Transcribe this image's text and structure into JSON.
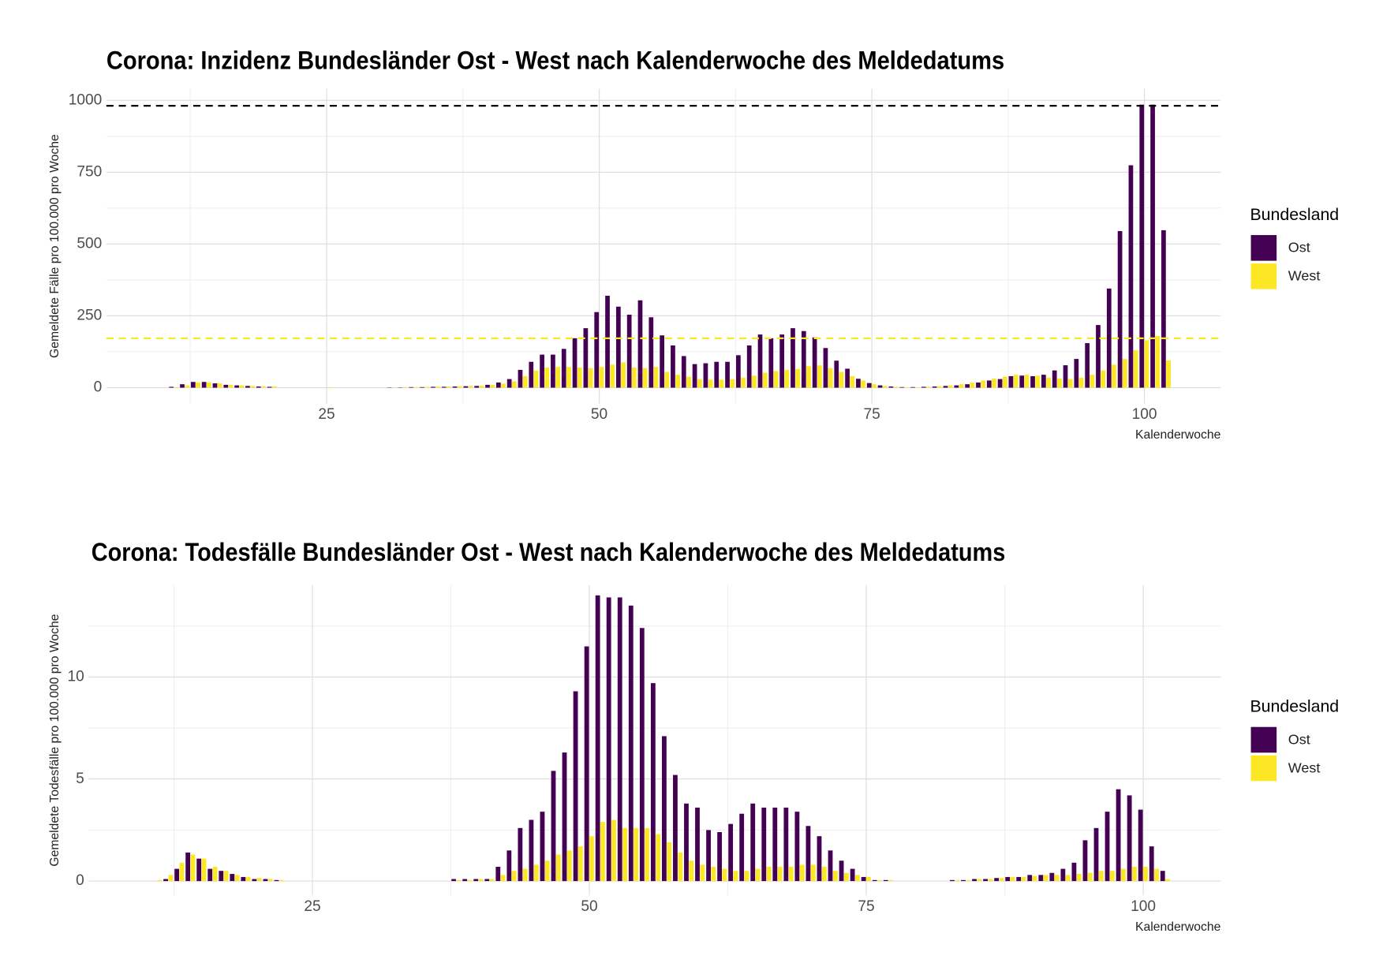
{
  "chart_data": [
    {
      "type": "bar",
      "title": "Corona: Inzidenz Bundesländer Ost - West nach Kalenderwoche des Meldedatums",
      "xlabel": "Kalenderwoche",
      "ylabel": "Gemeldete Fälle pro 100.000 pro Woche",
      "legend_title": "Bundesland",
      "legend_position": "right",
      "grid": true,
      "xlim": [
        4.8,
        107
      ],
      "xticks": [
        25,
        50,
        75,
        100
      ],
      "xminor": [
        12.5,
        37.5,
        62.5,
        87.5
      ],
      "ylim": [
        -55,
        1040
      ],
      "yticks": [
        0,
        250,
        500,
        750,
        1000
      ],
      "yminor": [
        125,
        375,
        625,
        875
      ],
      "hlines": [
        {
          "value": 981,
          "color": "#000000"
        },
        {
          "value": 172,
          "color": "#fde725"
        }
      ],
      "x": [
        11,
        12,
        13,
        14,
        15,
        16,
        17,
        18,
        19,
        20,
        21,
        22,
        23,
        24,
        25,
        26,
        27,
        28,
        29,
        30,
        31,
        32,
        33,
        34,
        35,
        36,
        37,
        38,
        39,
        40,
        41,
        42,
        43,
        44,
        45,
        46,
        47,
        48,
        49,
        50,
        51,
        52,
        53,
        54,
        55,
        56,
        57,
        58,
        59,
        60,
        61,
        62,
        63,
        64,
        65,
        66,
        67,
        68,
        69,
        70,
        71,
        72,
        73,
        74,
        75,
        76,
        77,
        78,
        79,
        80,
        81,
        82,
        83,
        84,
        85,
        86,
        87,
        88,
        89,
        90,
        91,
        92,
        93,
        94,
        95,
        96,
        97,
        98,
        99,
        100,
        101,
        102
      ],
      "series": [
        {
          "name": "Ost",
          "color": "#440154",
          "values": [
            3,
            12,
            20,
            20,
            15,
            10,
            8,
            6,
            4,
            3,
            0,
            0,
            0,
            0,
            0,
            0,
            0,
            0,
            0,
            0,
            1,
            1,
            2,
            2,
            3,
            3,
            4,
            5,
            6,
            10,
            18,
            30,
            62,
            90,
            115,
            115,
            135,
            172,
            207,
            263,
            320,
            282,
            254,
            304,
            245,
            182,
            147,
            110,
            82,
            85,
            90,
            90,
            113,
            147,
            185,
            172,
            185,
            207,
            197,
            175,
            138,
            94,
            66,
            31,
            16,
            8,
            4,
            2,
            2,
            3,
            4,
            6,
            8,
            12,
            18,
            25,
            30,
            40,
            42,
            40,
            45,
            60,
            78,
            100,
            155,
            218,
            345,
            545,
            774,
            985,
            985,
            548
          ]
        },
        {
          "name": "West",
          "color": "#fde725",
          "values": [
            2,
            8,
            18,
            18,
            15,
            10,
            8,
            6,
            5,
            4,
            0,
            0,
            0,
            0,
            2,
            0,
            0,
            0,
            0,
            0,
            1,
            2,
            2,
            3,
            4,
            4,
            5,
            6,
            7,
            10,
            14,
            22,
            40,
            60,
            70,
            72,
            72,
            70,
            68,
            72,
            80,
            88,
            70,
            68,
            72,
            55,
            45,
            38,
            30,
            28,
            28,
            30,
            35,
            42,
            52,
            58,
            62,
            65,
            75,
            78,
            68,
            55,
            40,
            25,
            12,
            6,
            3,
            2,
            2,
            3,
            5,
            8,
            12,
            18,
            25,
            32,
            38,
            45,
            45,
            42,
            35,
            32,
            30,
            35,
            45,
            60,
            80,
            100,
            130,
            165,
            180,
            95
          ]
        }
      ]
    },
    {
      "type": "bar",
      "title": "Corona: Todesfälle Bundesländer Ost - West nach Kalenderwoche des Meldedatums",
      "xlabel": "Kalenderwoche",
      "ylabel": "Gemeldete Todesfälle pro 100.000 pro Woche",
      "legend_title": "Bundesland",
      "legend_position": "right",
      "grid": true,
      "xlim": [
        4.8,
        107
      ],
      "xticks": [
        25,
        50,
        75,
        100
      ],
      "xminor": [
        12.5,
        37.5,
        62.5,
        87.5
      ],
      "ylim": [
        -0.7,
        14.5
      ],
      "yticks": [
        0,
        5,
        10
      ],
      "yminor": [
        2.5,
        7.5,
        12.5
      ],
      "hlines": [],
      "x": [
        11,
        12,
        13,
        14,
        15,
        16,
        17,
        18,
        19,
        20,
        21,
        22,
        23,
        24,
        25,
        26,
        27,
        28,
        29,
        30,
        31,
        32,
        33,
        34,
        35,
        36,
        37,
        38,
        39,
        40,
        41,
        42,
        43,
        44,
        45,
        46,
        47,
        48,
        49,
        50,
        51,
        52,
        53,
        54,
        55,
        56,
        57,
        58,
        59,
        60,
        61,
        62,
        63,
        64,
        65,
        66,
        67,
        68,
        69,
        70,
        71,
        72,
        73,
        74,
        75,
        76,
        77,
        78,
        79,
        80,
        81,
        82,
        83,
        84,
        85,
        86,
        87,
        88,
        89,
        90,
        91,
        92,
        93,
        94,
        95,
        96,
        97,
        98,
        99,
        100,
        101,
        102
      ],
      "series": [
        {
          "name": "Ost",
          "color": "#440154",
          "values": [
            0,
            0.1,
            0.6,
            1.4,
            1.1,
            0.6,
            0.5,
            0.35,
            0.2,
            0.1,
            0.1,
            0.05,
            0,
            0,
            0,
            0,
            0,
            0,
            0,
            0,
            0,
            0,
            0,
            0,
            0,
            0,
            0,
            0.1,
            0.1,
            0.1,
            0.1,
            0.7,
            1.5,
            2.6,
            3.0,
            3.4,
            5.4,
            6.3,
            9.3,
            11.5,
            14.0,
            13.9,
            13.9,
            13.5,
            12.4,
            9.7,
            7.1,
            5.2,
            3.8,
            3.6,
            2.5,
            2.4,
            2.8,
            3.3,
            3.8,
            3.6,
            3.6,
            3.6,
            3.4,
            2.7,
            2.2,
            1.5,
            1.0,
            0.6,
            0.2,
            0.05,
            0.05,
            0,
            0,
            0,
            0,
            0,
            0.05,
            0.05,
            0.1,
            0.1,
            0.15,
            0.2,
            0.2,
            0.3,
            0.3,
            0.4,
            0.6,
            0.9,
            2.0,
            2.6,
            3.4,
            4.5,
            4.2,
            3.5,
            1.7,
            0.5
          ]
        },
        {
          "name": "West",
          "color": "#fde725",
          "values": [
            0.05,
            0.3,
            0.9,
            1.3,
            1.1,
            0.7,
            0.5,
            0.3,
            0.2,
            0.15,
            0.1,
            0.05,
            0,
            0,
            0,
            0,
            0,
            0,
            0,
            0,
            0,
            0,
            0,
            0,
            0,
            0,
            0,
            0.05,
            0.05,
            0.1,
            0.1,
            0.3,
            0.5,
            0.6,
            0.8,
            1.0,
            1.3,
            1.5,
            1.7,
            2.2,
            2.9,
            3.0,
            2.6,
            2.6,
            2.6,
            2.3,
            1.9,
            1.4,
            1.0,
            0.8,
            0.7,
            0.6,
            0.5,
            0.5,
            0.6,
            0.7,
            0.7,
            0.7,
            0.8,
            0.8,
            0.7,
            0.5,
            0.4,
            0.3,
            0.2,
            0.05,
            0.05,
            0,
            0,
            0,
            0,
            0,
            0.05,
            0.05,
            0.1,
            0.1,
            0.15,
            0.2,
            0.2,
            0.25,
            0.3,
            0.3,
            0.3,
            0.35,
            0.4,
            0.5,
            0.5,
            0.6,
            0.7,
            0.7,
            0.6,
            0.1
          ]
        }
      ]
    }
  ]
}
